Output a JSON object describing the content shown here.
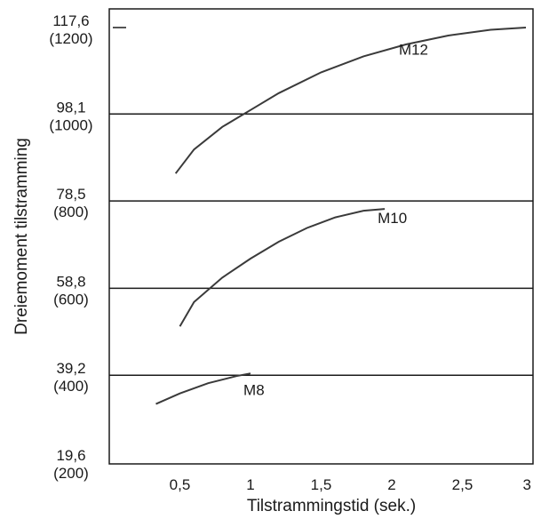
{
  "chart_data": {
    "type": "line",
    "xlabel": "Tilstrammingstid (sek.)",
    "ylabel": "Dreiemoment tilstramming",
    "xlim": [
      0,
      3
    ],
    "ylim": [
      19.6,
      117.6
    ],
    "x_ticks": [
      "0,5",
      "1",
      "1,5",
      "2",
      "2,5",
      "3"
    ],
    "y_ticks": [
      {
        "value": "117,6",
        "alt": "(1200)"
      },
      {
        "value": "98,1",
        "alt": "(1000)"
      },
      {
        "value": "78,5",
        "alt": "(800)"
      },
      {
        "value": "58,8",
        "alt": "(600)"
      },
      {
        "value": "39,2",
        "alt": "(400)"
      },
      {
        "value": "19,6",
        "alt": "(200)"
      }
    ],
    "grid": true,
    "series": [
      {
        "name": "M12",
        "x": [
          0.47,
          0.6,
          0.8,
          1.0,
          1.2,
          1.5,
          1.8,
          2.1,
          2.4,
          2.7,
          2.95
        ],
        "y": [
          84.7,
          90.1,
          95.2,
          99.0,
          102.8,
          107.5,
          111.1,
          113.8,
          115.8,
          117.1,
          117.6
        ]
      },
      {
        "name": "M10",
        "x": [
          0.5,
          0.6,
          0.8,
          1.0,
          1.2,
          1.4,
          1.6,
          1.8,
          1.95
        ],
        "y": [
          50.2,
          55.7,
          61.2,
          65.5,
          69.3,
          72.4,
          74.8,
          76.3,
          76.7
        ]
      },
      {
        "name": "M8",
        "x": [
          0.33,
          0.5,
          0.7,
          0.9,
          1.0
        ],
        "y": [
          32.7,
          35.1,
          37.4,
          39.0,
          39.6
        ]
      }
    ],
    "annotations": [
      {
        "text": "M12",
        "x": 2.05,
        "y": 111.5
      },
      {
        "text": "M10",
        "x": 1.9,
        "y": 73.5
      },
      {
        "text": "M8",
        "x": 0.95,
        "y": 34.7
      }
    ]
  }
}
